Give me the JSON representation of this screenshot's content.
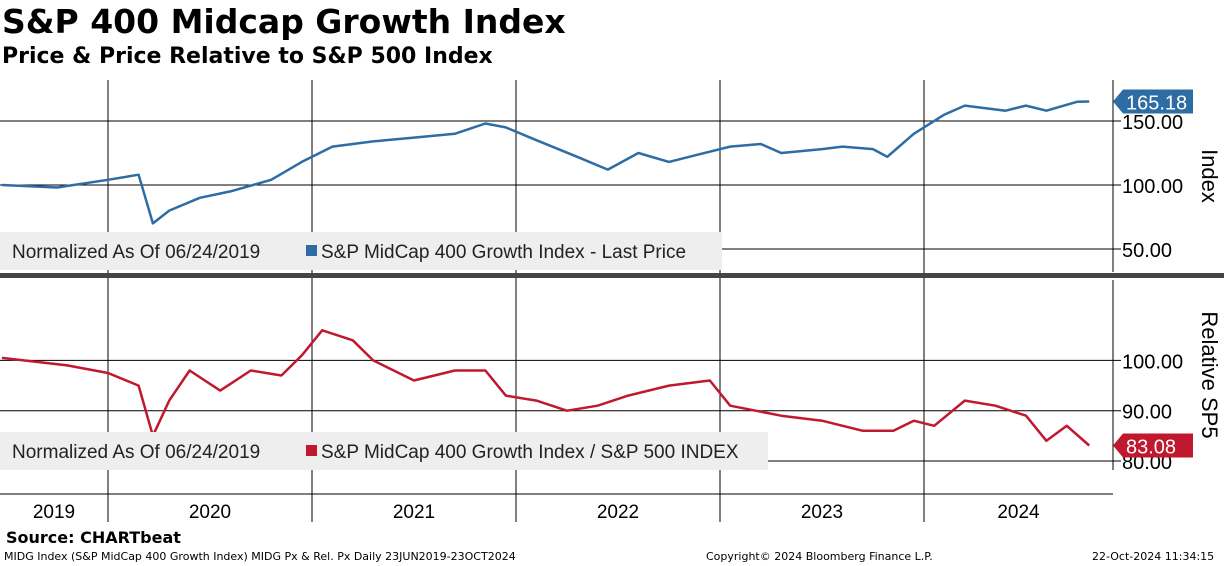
{
  "title": "S&P 400 Midcap Growth Index",
  "subtitle": "Price & Price Relative to S&P 500 Index",
  "source": "Source: CHARTbeat",
  "footer": {
    "left": "MIDG Index (S&P MidCap 400 Growth Index) MIDG Px & Rel. Px  Daily 23JUN2019-23OCT2024",
    "center": "Copyright© 2024 Bloomberg Finance L.P.",
    "right": "22-Oct-2024 11:34:15"
  },
  "chart_data": [
    {
      "type": "line",
      "ylabel": "Index",
      "ylim": [
        32,
        182
      ],
      "yticks": [
        "150.00",
        "100.00",
        "50.00"
      ],
      "ytick_values": [
        150,
        100,
        50
      ],
      "color": "#2e6ca4",
      "legend": {
        "note": "Normalized As Of 06/24/2019",
        "label": "S&P MidCap 400 Growth Index - Last Price"
      },
      "last_value": "165.18",
      "x": [
        2019.48,
        2019.75,
        2020.0,
        2020.15,
        2020.22,
        2020.3,
        2020.45,
        2020.6,
        2020.8,
        2020.95,
        2021.1,
        2021.3,
        2021.5,
        2021.7,
        2021.85,
        2021.95,
        2022.1,
        2022.3,
        2022.45,
        2022.6,
        2022.75,
        2022.9,
        2023.05,
        2023.2,
        2023.3,
        2023.5,
        2023.6,
        2023.75,
        2023.82,
        2023.95,
        2024.1,
        2024.2,
        2024.4,
        2024.5,
        2024.6,
        2024.75,
        2024.81
      ],
      "y": [
        100,
        98,
        104,
        108,
        70,
        80,
        90,
        95,
        104,
        118,
        130,
        134,
        137,
        140,
        148,
        145,
        135,
        122,
        112,
        125,
        118,
        124,
        130,
        132,
        125,
        128,
        130,
        128,
        122,
        140,
        155,
        162,
        158,
        162,
        158,
        165,
        165.18
      ]
    },
    {
      "type": "line",
      "ylabel": "Relative SP5",
      "ylim": [
        78.2,
        116
      ],
      "yticks": [
        "100.00",
        "90.00",
        "80.00"
      ],
      "ytick_values": [
        100,
        90,
        80
      ],
      "color": "#c0182e",
      "legend": {
        "note": "Normalized As Of 06/24/2019",
        "label": "S&P MidCap 400 Growth Index / S&P 500 INDEX"
      },
      "last_value": "83.08",
      "x": [
        2019.48,
        2019.8,
        2020.0,
        2020.15,
        2020.22,
        2020.3,
        2020.4,
        2020.55,
        2020.7,
        2020.85,
        2020.95,
        2021.05,
        2021.2,
        2021.3,
        2021.5,
        2021.7,
        2021.85,
        2021.95,
        2022.1,
        2022.25,
        2022.4,
        2022.55,
        2022.75,
        2022.95,
        2023.05,
        2023.3,
        2023.5,
        2023.7,
        2023.85,
        2023.95,
        2024.05,
        2024.2,
        2024.35,
        2024.5,
        2024.6,
        2024.7,
        2024.81
      ],
      "y": [
        100.5,
        99,
        97.5,
        95,
        85,
        92,
        98,
        94,
        98,
        97,
        101,
        106,
        104,
        100,
        96,
        98,
        98,
        93,
        92,
        90,
        91,
        93,
        95,
        96,
        91,
        89,
        88,
        86,
        86,
        88,
        87,
        92,
        91,
        89,
        84,
        87,
        83.08
      ]
    }
  ],
  "xaxis": {
    "labels": [
      "2019",
      "2020",
      "2021",
      "2022",
      "2023",
      "2024"
    ],
    "start": 2019.48,
    "end": 2024.81
  }
}
